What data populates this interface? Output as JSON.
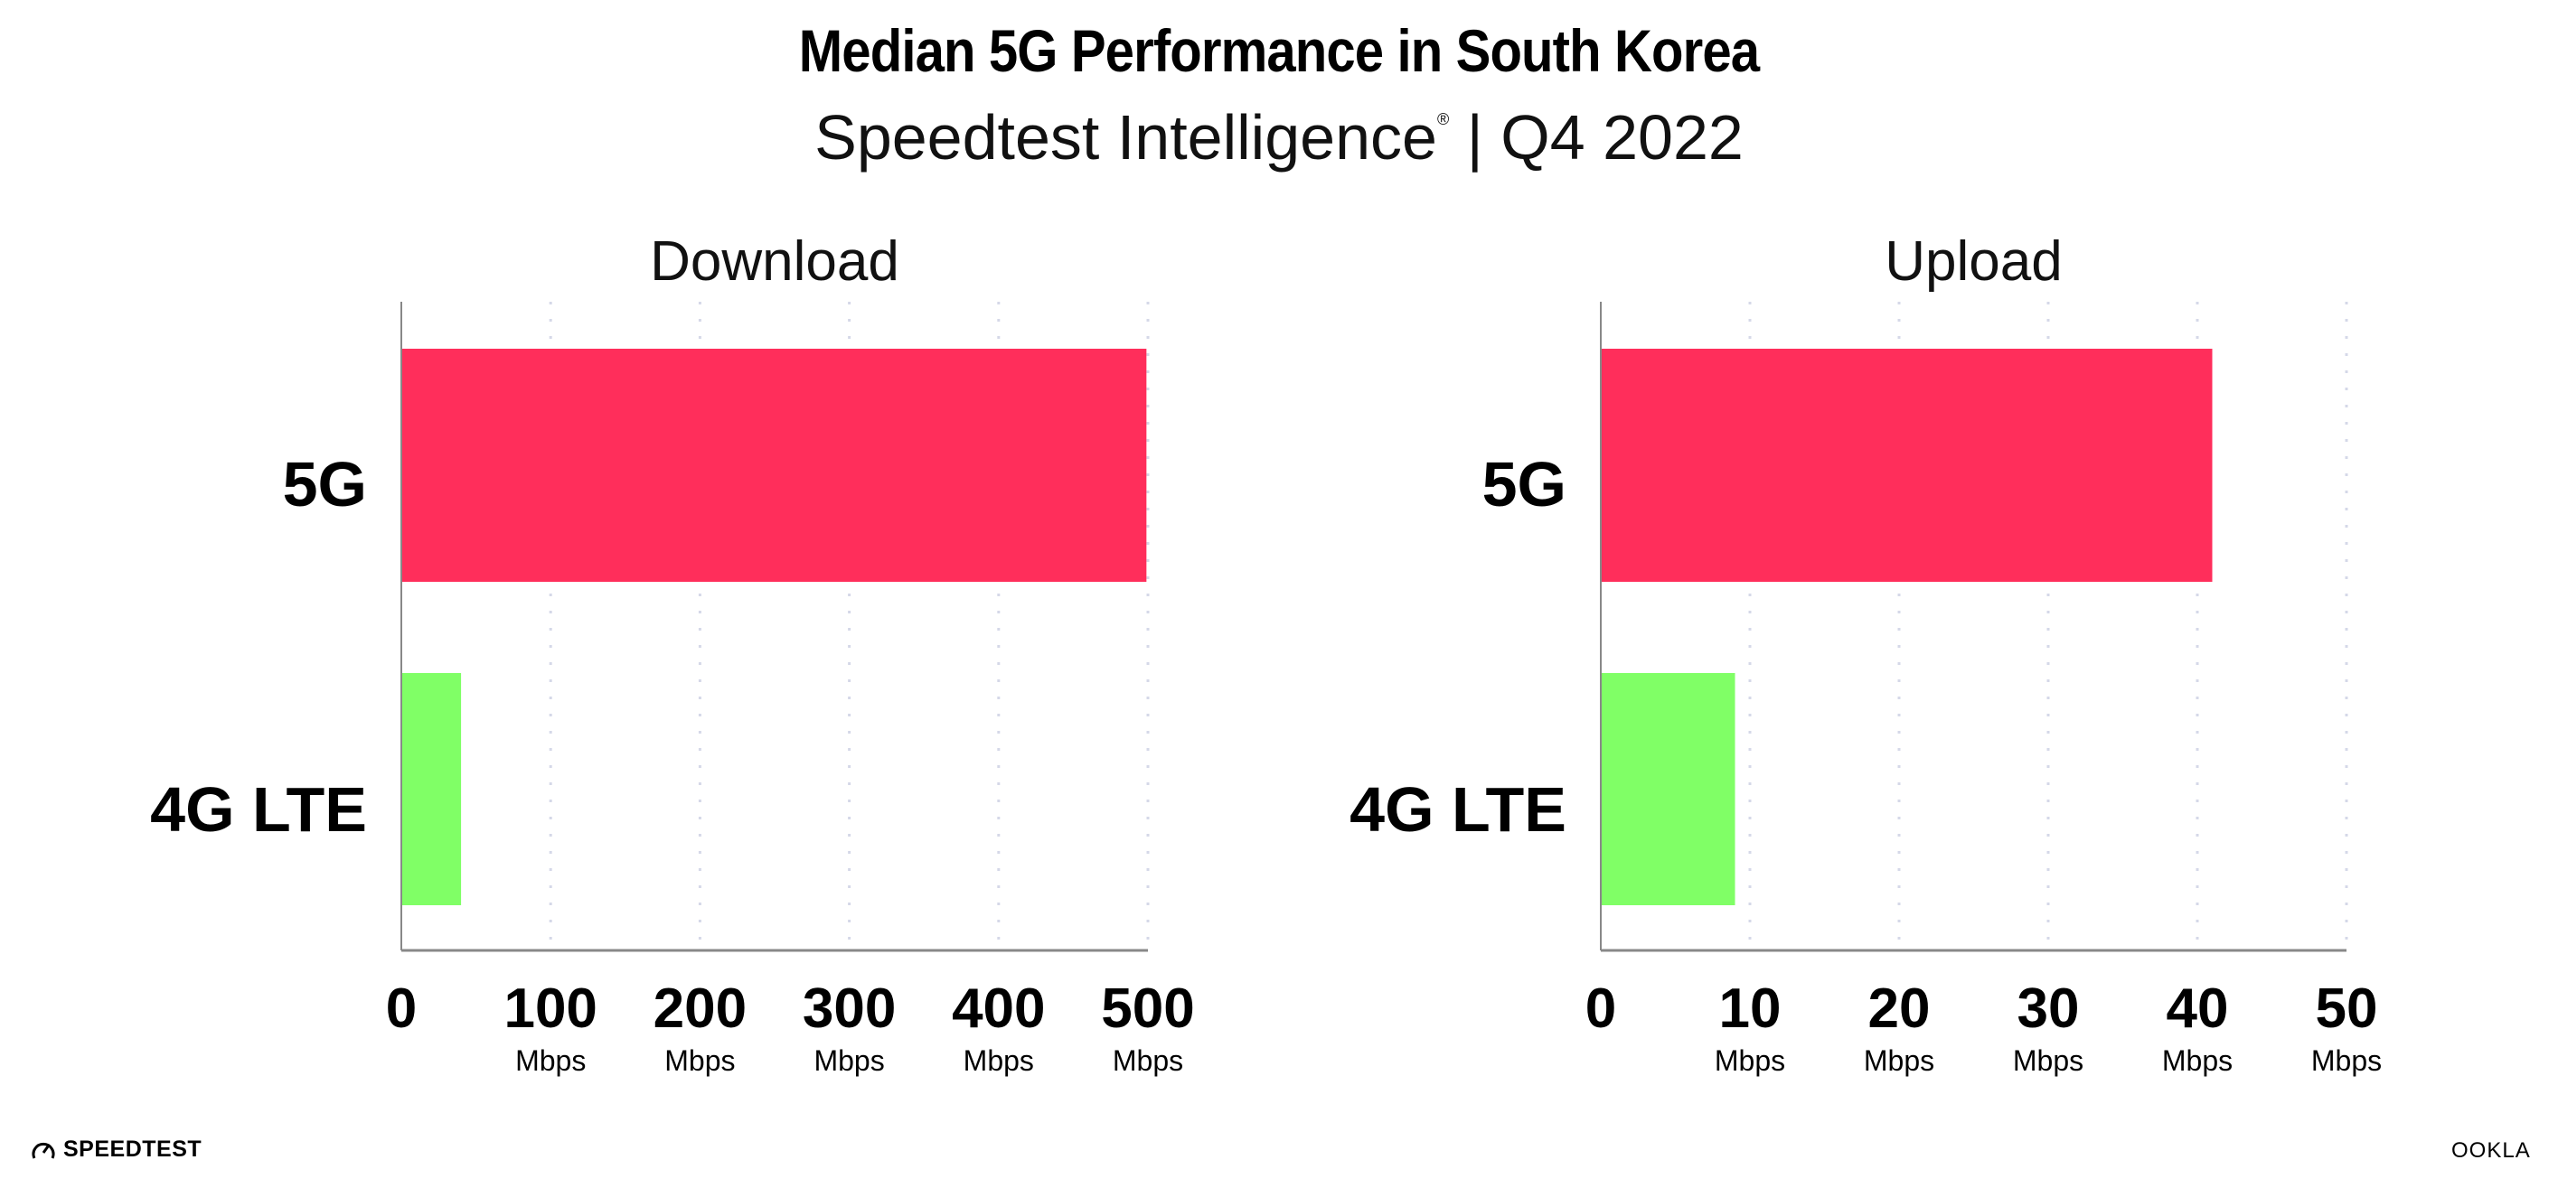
{
  "title": "Median 5G Performance in South Korea",
  "subtitle": {
    "text": "Speedtest Intelligence",
    "mark": "®",
    "period": "| Q4 2022"
  },
  "colors": {
    "5G": "#FF2E5B",
    "4G LTE": "#80FF66",
    "grid": "#D5D8E8",
    "axis": "#888888"
  },
  "chart_data": [
    {
      "type": "bar",
      "orientation": "horizontal",
      "title": "Download",
      "categories": [
        "5G",
        "4G LTE"
      ],
      "values": [
        499,
        40
      ],
      "xlim": [
        0,
        500
      ],
      "ticks": [
        0,
        100,
        200,
        300,
        400,
        500
      ],
      "tick_labels": [
        "0",
        "100",
        "200",
        "300",
        "400",
        "500"
      ],
      "unit": "Mbps",
      "grid": true
    },
    {
      "type": "bar",
      "orientation": "horizontal",
      "title": "Upload",
      "categories": [
        "5G",
        "4G LTE"
      ],
      "values": [
        41,
        9
      ],
      "xlim": [
        0,
        50
      ],
      "ticks": [
        0,
        10,
        20,
        30,
        40,
        50
      ],
      "tick_labels": [
        "0",
        "10",
        "20",
        "30",
        "40",
        "50"
      ],
      "unit": "Mbps",
      "grid": true
    }
  ],
  "footer": {
    "left_logo": "SPEEDTEST",
    "right_logo": "OOKLA"
  }
}
